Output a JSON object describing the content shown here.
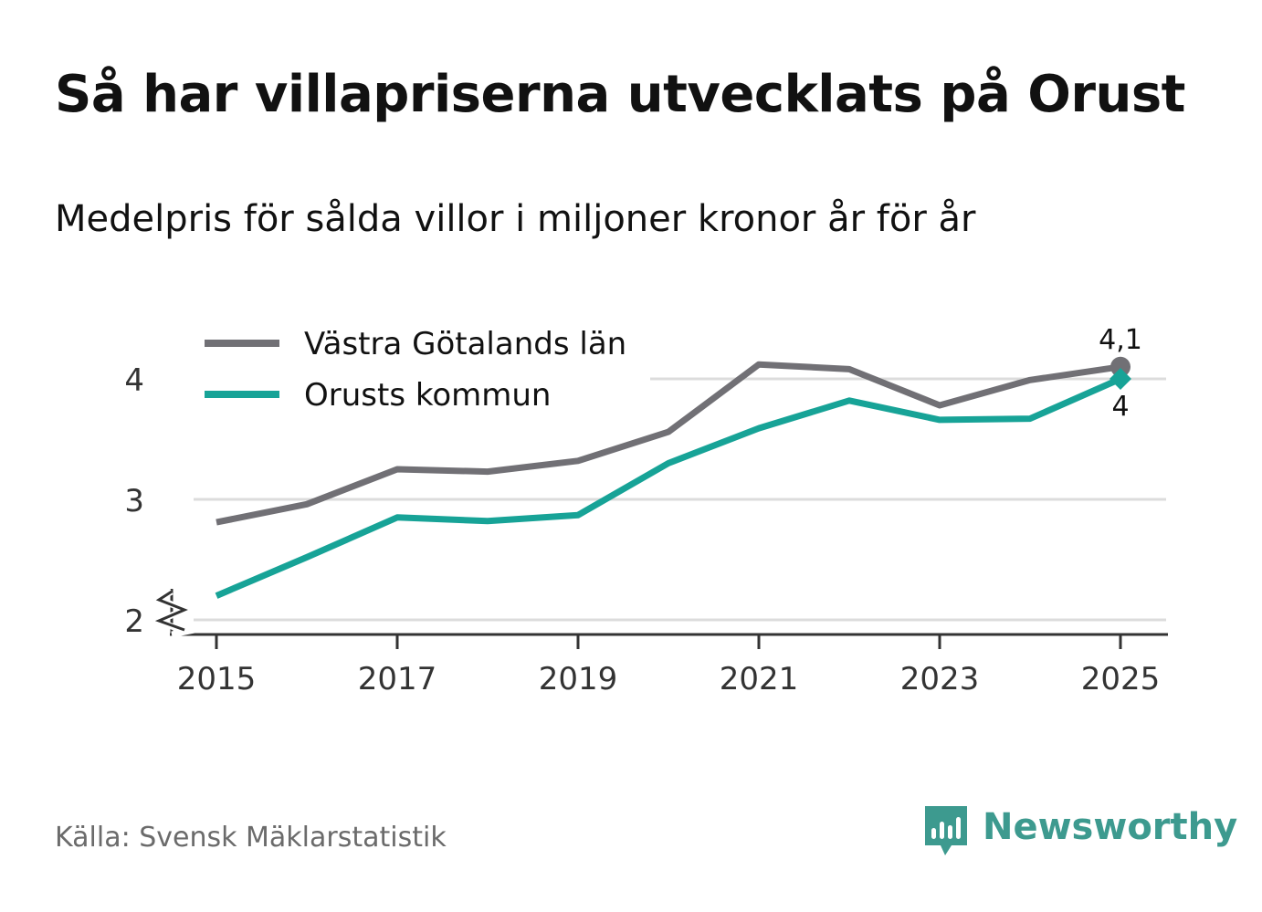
{
  "title": "Så har villapriserna utvecklats på Orust",
  "subtitle": "Medelpris för sålda villor i miljoner kronor år för år",
  "source": "Källa: Svensk Mäklarstatistik",
  "brand": "Newsworthy",
  "colors": {
    "vastra_gotaland": "#717075",
    "orust": "#17a397",
    "grid": "#dcdcdc",
    "axis": "#333333",
    "brand": "#3d9a8f"
  },
  "chart_data": {
    "type": "line",
    "title": "Så har villapriserna utvecklats på Orust",
    "subtitle": "Medelpris för sålda villor i miljoner kronor år för år",
    "xlabel": "",
    "ylabel": "",
    "x": [
      2015,
      2016,
      2017,
      2018,
      2019,
      2020,
      2021,
      2022,
      2023,
      2024,
      2025
    ],
    "xticks": [
      "2015",
      "2017",
      "2019",
      "2021",
      "2023",
      "2025"
    ],
    "yticks": [
      "2",
      "3",
      "4"
    ],
    "ylim": [
      1.9,
      4.25
    ],
    "ytick_values": [
      2,
      3,
      4
    ],
    "xtick_values": [
      2015,
      2017,
      2019,
      2021,
      2023,
      2025
    ],
    "axis_break": true,
    "grid": true,
    "legend_position": "top-left",
    "series": [
      {
        "name": "Västra Götalands län",
        "values": [
          2.81,
          2.96,
          3.25,
          3.23,
          3.32,
          3.56,
          4.12,
          4.08,
          3.78,
          3.99,
          4.1
        ],
        "end_label": "4,1"
      },
      {
        "name": "Orusts kommun",
        "values": [
          2.2,
          2.52,
          2.85,
          2.82,
          2.87,
          3.3,
          3.59,
          3.82,
          3.66,
          3.67,
          4.0
        ],
        "end_label": "4"
      }
    ]
  }
}
